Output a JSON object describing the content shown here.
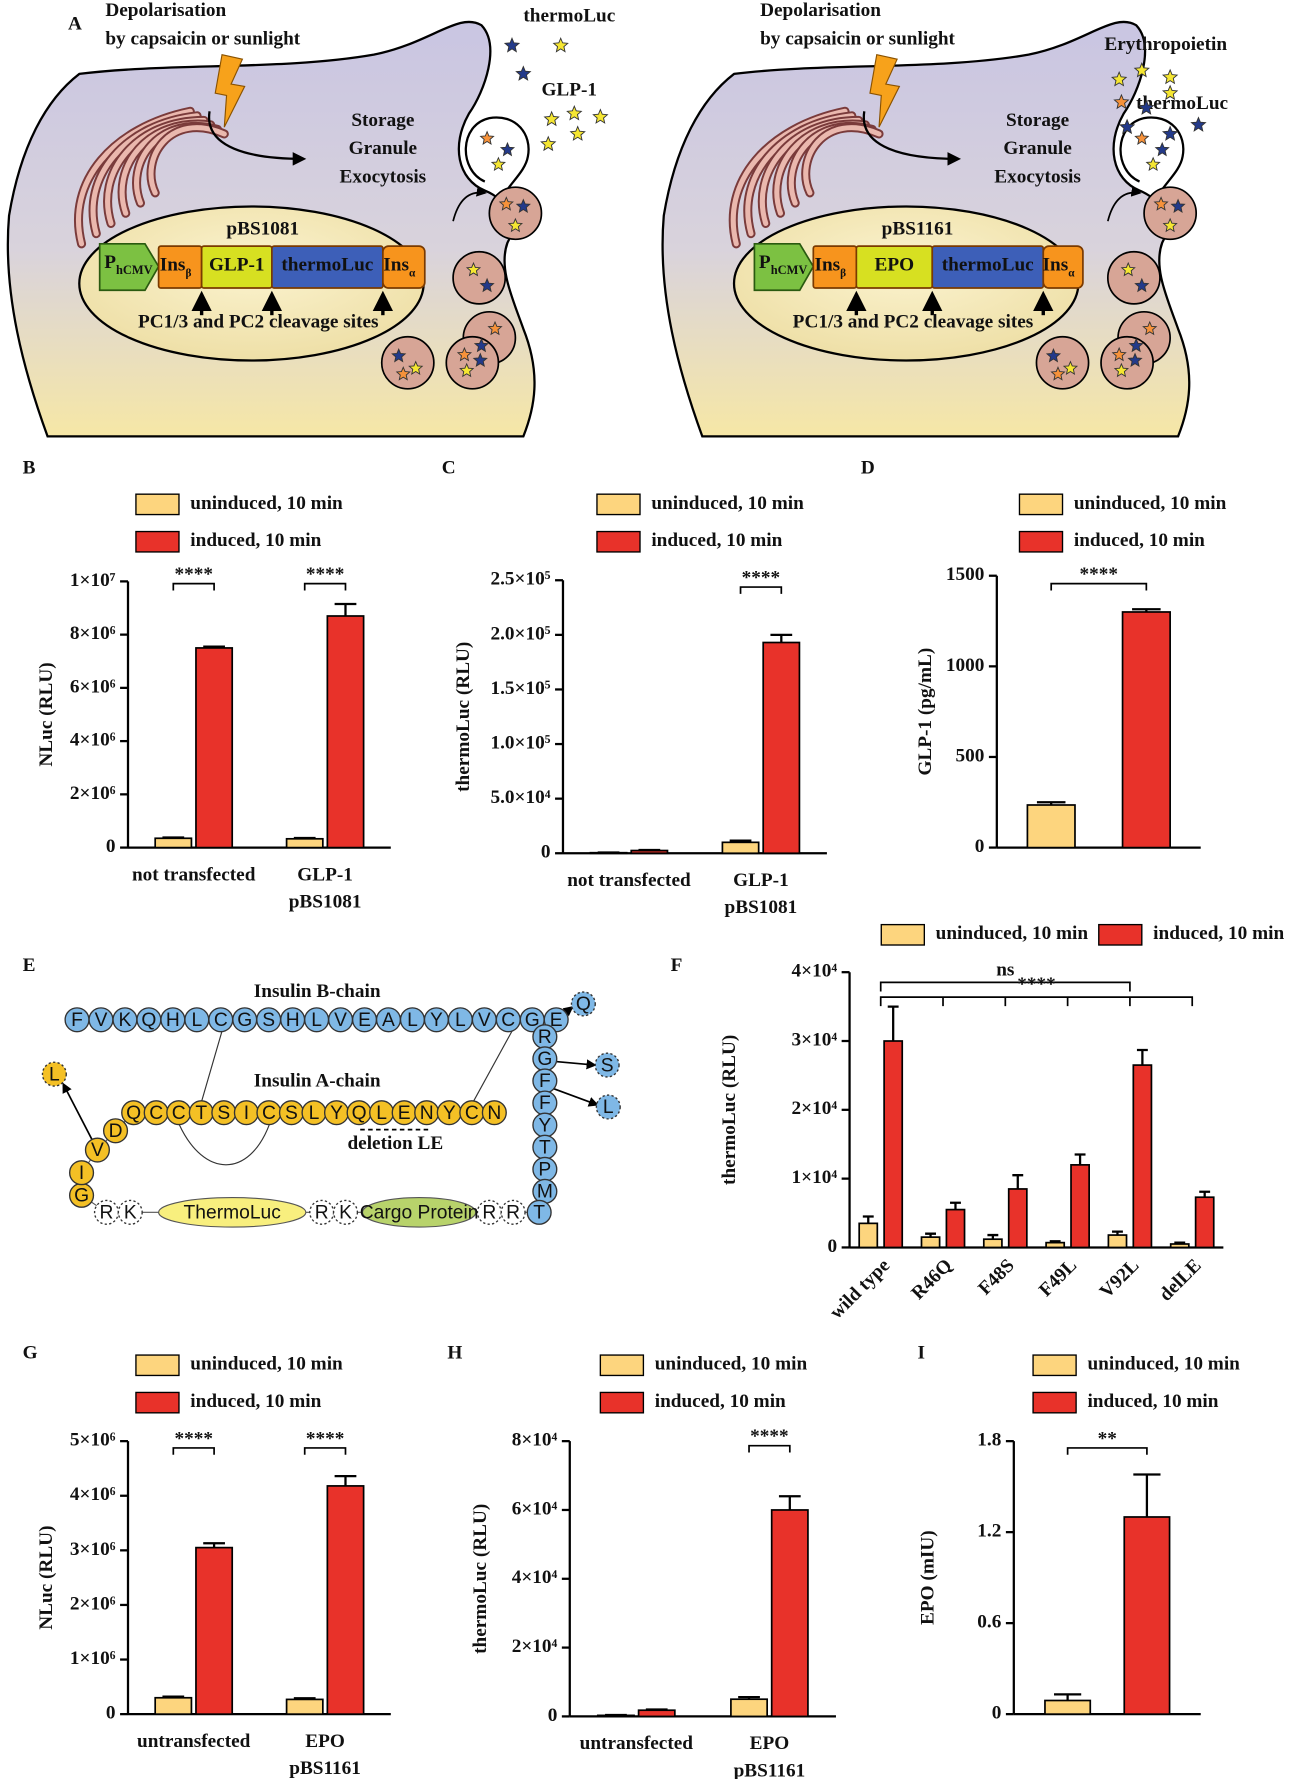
{
  "diagram_a": {
    "label": "A",
    "panels": [
      {
        "trigger": [
          "Depolarisation",
          "by capsaicin or sunlight"
        ],
        "products": [
          "thermoLuc",
          "GLP-1"
        ],
        "process": [
          "Storage",
          "Granule",
          "Exocytosis"
        ],
        "plasmid": "pBS1081",
        "promoter": {
          "text": "P",
          "sub": "hCMV"
        },
        "segments": [
          {
            "text": "Ins",
            "sub": "β"
          },
          {
            "text": "GLP-1"
          },
          {
            "text": "thermoLuc"
          },
          {
            "text": "Ins",
            "sub": "α"
          }
        ],
        "cleavage": "PC1/3 and PC2 cleavage sites"
      },
      {
        "trigger": [
          "Depolarisation",
          "by capsaicin or sunlight"
        ],
        "products": [
          "Erythropoietin",
          "thermoLuc"
        ],
        "process": [
          "Storage",
          "Granule",
          "Exocytosis"
        ],
        "plasmid": "pBS1161",
        "promoter": {
          "text": "P",
          "sub": "hCMV"
        },
        "segments": [
          {
            "text": "Ins",
            "sub": "β"
          },
          {
            "text": "EPO"
          },
          {
            "text": "thermoLuc"
          },
          {
            "text": "Ins",
            "sub": "α"
          }
        ],
        "cleavage": "PC1/3 and PC2 cleavage sites"
      }
    ]
  },
  "diagram_e": {
    "label": "E",
    "b_title": "Insulin B-chain",
    "a_title": "Insulin A-chain",
    "b_chain": [
      "F",
      "V",
      "K",
      "Q",
      "H",
      "L",
      "C",
      "G",
      "S",
      "H",
      "L",
      "V",
      "E",
      "A",
      "L",
      "Y",
      "L",
      "V",
      "C",
      "G",
      "E"
    ],
    "c_column": [
      "R",
      "G",
      "F",
      "F",
      "Y",
      "T",
      "P",
      "M",
      "T"
    ],
    "a_chain": [
      "G",
      "I",
      "V",
      "D",
      "Q",
      "C",
      "C",
      "T",
      "S",
      "I",
      "C",
      "S",
      "L",
      "Y",
      "Q",
      "L",
      "E",
      "N",
      "Y",
      "C",
      "N"
    ],
    "mutations": [
      "Q",
      "S",
      "L",
      "L"
    ],
    "deletion": "deletion LE",
    "linker1": [
      "R",
      "K"
    ],
    "linker2": [
      "R",
      "K"
    ],
    "linker3": [
      "R",
      "R"
    ],
    "proteins": [
      "ThermoLuc",
      "Cargo Protein"
    ]
  },
  "chart_data": [
    {
      "type": "bar",
      "panel": "B",
      "ylabel": "NLuc (RLU)",
      "categories": [
        [
          "not transfected"
        ],
        [
          "GLP-1",
          "pBS1081"
        ]
      ],
      "ylim": [
        0,
        10000000
      ],
      "yticks": [
        0,
        {
          "value": 2000000,
          "label": "2×10⁶"
        },
        {
          "value": 4000000,
          "label": "4×10⁶"
        },
        {
          "value": 6000000,
          "label": "6×10⁶"
        },
        {
          "value": 8000000,
          "label": "8×10⁶"
        },
        {
          "value": 10000000,
          "label": "1×10⁷"
        }
      ],
      "series": [
        {
          "name": "uninduced, 10 min",
          "color": "#fdd57e",
          "values": [
            350000,
            330000
          ],
          "errors": [
            30000,
            30000
          ]
        },
        {
          "name": "induced, 10 min",
          "color": "#e8322a",
          "values": [
            7500000,
            8700000
          ],
          "errors": [
            50000,
            450000
          ]
        }
      ],
      "significance": [
        "****",
        "****"
      ]
    },
    {
      "type": "bar",
      "panel": "C",
      "ylabel": "thermoLuc (RLU)",
      "categories": [
        [
          "not transfected"
        ],
        [
          "GLP-1",
          "pBS1081"
        ]
      ],
      "ylim": [
        0,
        250000
      ],
      "yticks": [
        0,
        {
          "value": 50000,
          "label": "5.0×10⁴"
        },
        {
          "value": 100000,
          "label": "1.0×10⁵"
        },
        {
          "value": 150000,
          "label": "1.5×10⁵"
        },
        {
          "value": 200000,
          "label": "2.0×10⁵"
        },
        {
          "value": 250000,
          "label": "2.5×10⁵"
        }
      ],
      "series": [
        {
          "name": "uninduced, 10 min",
          "color": "#fdd57e",
          "values": [
            500,
            10000
          ],
          "errors": [
            200,
            1500
          ]
        },
        {
          "name": "induced, 10 min",
          "color": "#e8322a",
          "values": [
            2500,
            193000
          ],
          "errors": [
            500,
            7000
          ]
        }
      ],
      "significance": [
        null,
        "****"
      ]
    },
    {
      "type": "bar",
      "panel": "D",
      "ylabel": "GLP-1 (pg/mL)",
      "categories": [
        null
      ],
      "ylim": [
        0,
        1500
      ],
      "yticks": [
        0,
        500,
        1000,
        1500
      ],
      "series": [
        {
          "name": "uninduced, 10 min",
          "color": "#fdd57e",
          "values": [
            235
          ],
          "errors": [
            15
          ]
        },
        {
          "name": "induced, 10 min",
          "color": "#e8322a",
          "values": [
            1300
          ],
          "errors": [
            15
          ]
        }
      ],
      "significance": [
        "****"
      ]
    },
    {
      "type": "bar",
      "panel": "F",
      "ylabel": "thermoLuc (RLU)",
      "categories": [
        "wild type",
        "R46Q",
        "F48S",
        "F49L",
        "V92L",
        "delLE"
      ],
      "ylim": [
        0,
        40000
      ],
      "yticks": [
        0,
        {
          "value": 10000,
          "label": "1×10⁴"
        },
        {
          "value": 20000,
          "label": "2×10⁴"
        },
        {
          "value": 30000,
          "label": "3×10⁴"
        },
        {
          "value": 40000,
          "label": "4×10⁴"
        }
      ],
      "series": [
        {
          "name": "uninduced, 10 min",
          "color": "#fdd57e",
          "values": [
            3500,
            1500,
            1200,
            700,
            1800,
            500
          ],
          "errors": [
            1000,
            500,
            600,
            200,
            500,
            200
          ]
        },
        {
          "name": "induced, 10 min",
          "color": "#e8322a",
          "values": [
            30000,
            5500,
            8500,
            12000,
            26500,
            7300
          ],
          "errors": [
            5000,
            1000,
            2000,
            1500,
            2200,
            800
          ]
        }
      ],
      "significance": [
        "ns",
        "****"
      ]
    },
    {
      "type": "bar",
      "panel": "G",
      "ylabel": "NLuc (RLU)",
      "categories": [
        [
          "untransfected"
        ],
        [
          "EPO",
          "pBS1161"
        ]
      ],
      "ylim": [
        0,
        5000000
      ],
      "yticks": [
        0,
        {
          "value": 1000000,
          "label": "1×10⁶"
        },
        {
          "value": 2000000,
          "label": "2×10⁶"
        },
        {
          "value": 3000000,
          "label": "3×10⁶"
        },
        {
          "value": 4000000,
          "label": "4×10⁶"
        },
        {
          "value": 5000000,
          "label": "5×10⁶"
        }
      ],
      "series": [
        {
          "name": "uninduced, 10 min",
          "color": "#fdd57e",
          "values": [
            300000,
            270000
          ],
          "errors": [
            20000,
            20000
          ]
        },
        {
          "name": "induced, 10 min",
          "color": "#e8322a",
          "values": [
            3050000,
            4180000
          ],
          "errors": [
            80000,
            180000
          ]
        }
      ],
      "significance": [
        "****",
        "****"
      ]
    },
    {
      "type": "bar",
      "panel": "H",
      "ylabel": "thermoLuc (RLU)",
      "categories": [
        [
          "untransfected"
        ],
        [
          "EPO",
          "pBS1161"
        ]
      ],
      "ylim": [
        0,
        80000
      ],
      "yticks": [
        0,
        {
          "value": 20000,
          "label": "2×10⁴"
        },
        {
          "value": 40000,
          "label": "4×10⁴"
        },
        {
          "value": 60000,
          "label": "6×10⁴"
        },
        {
          "value": 80000,
          "label": "8×10⁴"
        }
      ],
      "series": [
        {
          "name": "uninduced, 10 min",
          "color": "#fdd57e",
          "values": [
            300,
            5000
          ],
          "errors": [
            100,
            600
          ]
        },
        {
          "name": "induced, 10 min",
          "color": "#e8322a",
          "values": [
            1800,
            60000
          ],
          "errors": [
            200,
            4000
          ]
        }
      ],
      "significance": [
        null,
        "****"
      ]
    },
    {
      "type": "bar",
      "panel": "I",
      "ylabel": "EPO (mIU)",
      "categories": [
        null
      ],
      "ylim": [
        0,
        1.8
      ],
      "yticks": [
        0,
        0.6,
        1.2,
        1.8
      ],
      "series": [
        {
          "name": "uninduced, 10 min",
          "color": "#fdd57e",
          "values": [
            0.09
          ],
          "errors": [
            0.04
          ]
        },
        {
          "name": "induced, 10 min",
          "color": "#e8322a",
          "values": [
            1.3
          ],
          "errors": [
            0.28
          ]
        }
      ],
      "significance": [
        "**"
      ]
    }
  ]
}
